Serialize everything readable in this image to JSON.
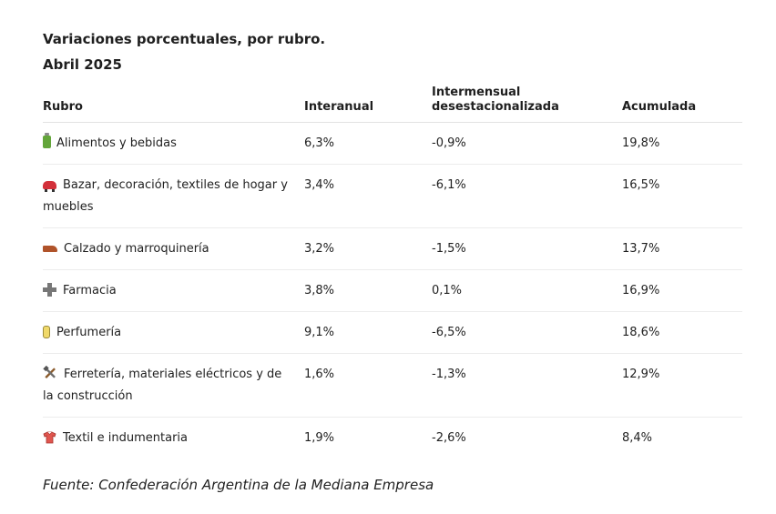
{
  "title": {
    "line1": "Variaciones porcentuales, por rubro.",
    "line2": "Abril 2025"
  },
  "table": {
    "headers": {
      "rubro": "Rubro",
      "interanual": "Interanual",
      "intermensual_line1": "Intermensual",
      "intermensual_line2": "desestacionalizada",
      "acumulada": "Acumulada"
    },
    "rows": [
      {
        "icon": "bottle-icon",
        "rubro": "Alimentos y bebidas",
        "interanual": "6,3%",
        "intermensual": "-0,9%",
        "acumulada": "19,8%"
      },
      {
        "icon": "car-icon",
        "rubro": "Bazar, decoración, textiles de hogar y muebles",
        "interanual": "3,4%",
        "intermensual": "-6,1%",
        "acumulada": "16,5%"
      },
      {
        "icon": "shoe-icon",
        "rubro": "Calzado y marroquinería",
        "interanual": "3,2%",
        "intermensual": "-1,5%",
        "acumulada": "13,7%"
      },
      {
        "icon": "cross-icon",
        "rubro": "Farmacia",
        "interanual": "3,8%",
        "intermensual": "0,1%",
        "acumulada": "16,9%"
      },
      {
        "icon": "perfume-bottle-icon",
        "rubro": "Perfumería",
        "interanual": "9,1%",
        "intermensual": "-6,5%",
        "acumulada": "18,6%"
      },
      {
        "icon": "tools-icon",
        "rubro": "Ferretería, materiales eléctricos y de la construcción",
        "interanual": "1,6%",
        "intermensual": "-1,3%",
        "acumulada": "12,9%"
      },
      {
        "icon": "shirt-icon",
        "rubro": "Textil e indumentaria",
        "interanual": "1,9%",
        "intermensual": "-2,6%",
        "acumulada": "8,4%"
      }
    ]
  },
  "source": "Fuente: Confederación Argentina de la Mediana Empresa"
}
